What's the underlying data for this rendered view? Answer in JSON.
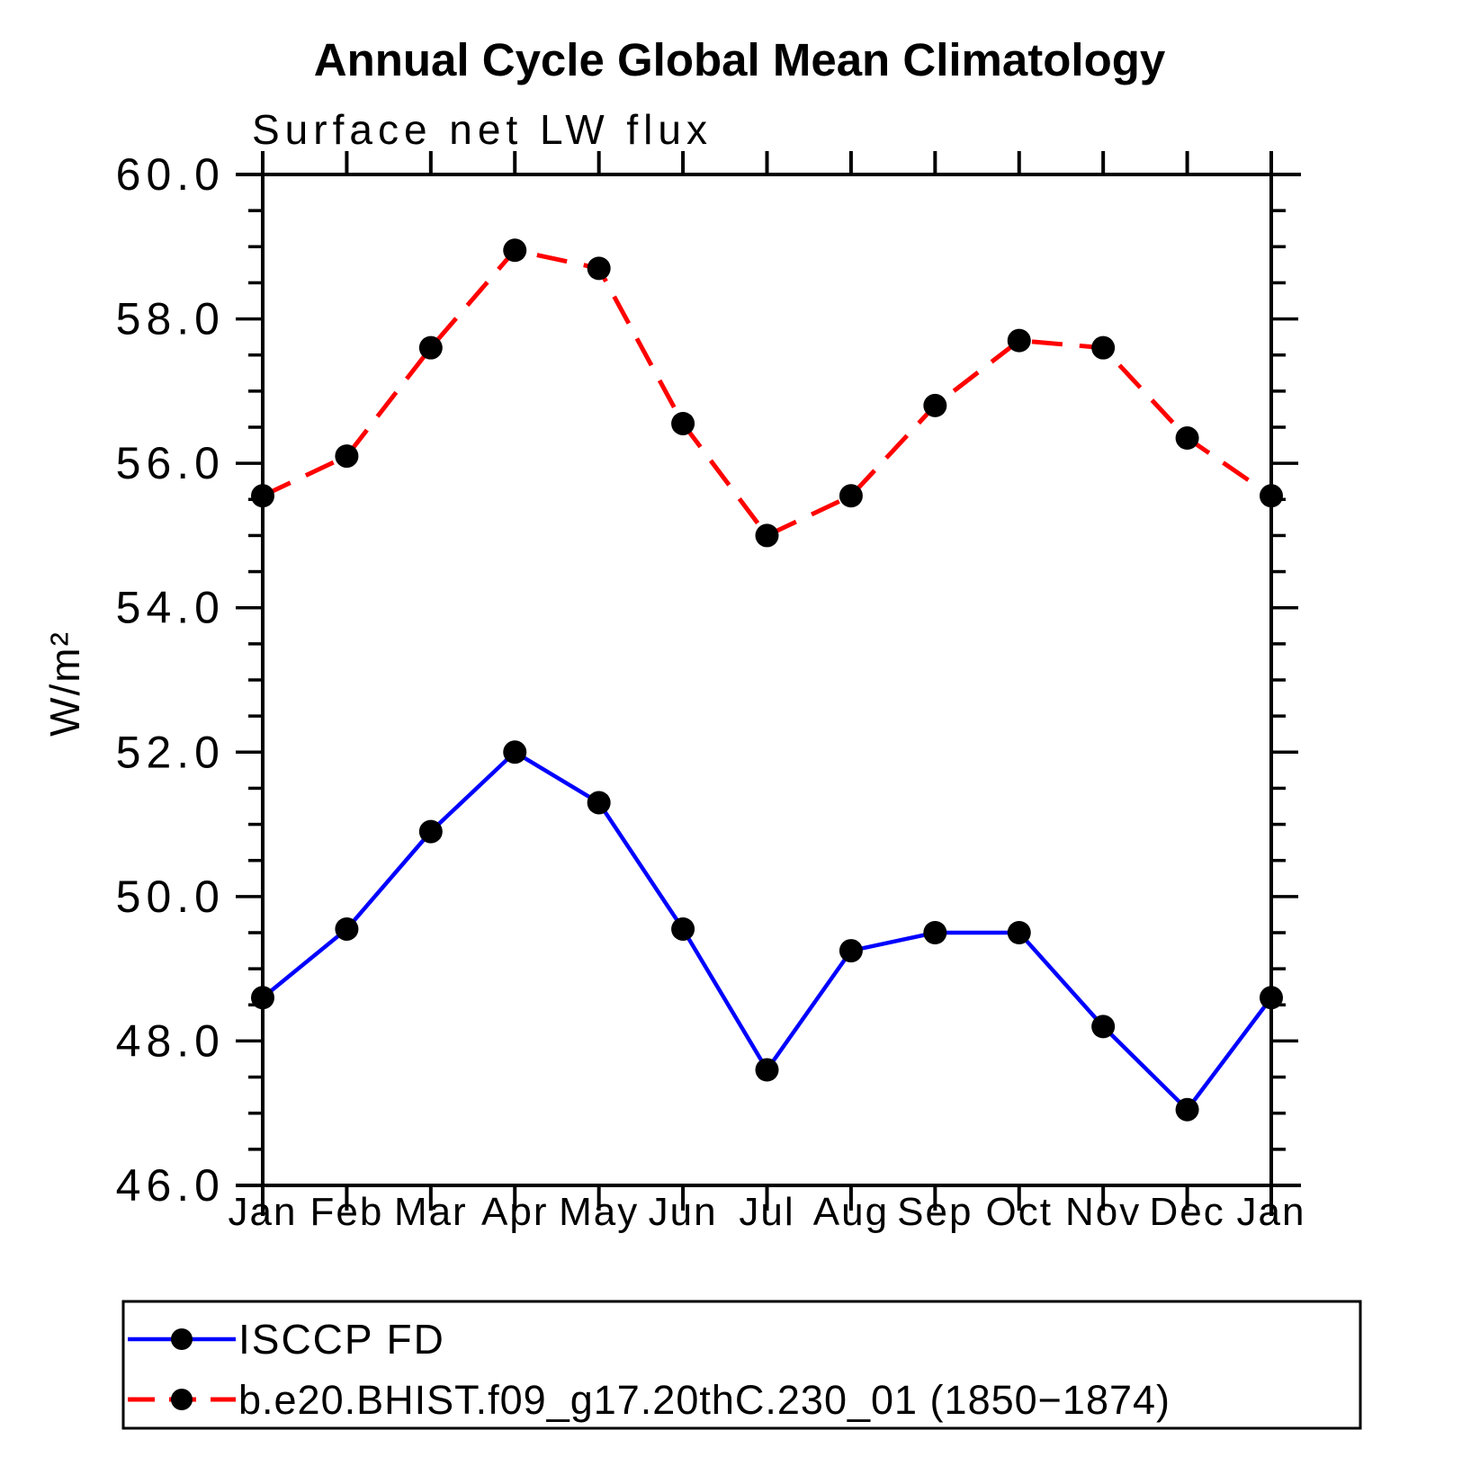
{
  "chart_data": {
    "type": "line",
    "title": "Annual Cycle Global Mean Climatology",
    "subtitle": "Surface net LW flux",
    "ylabel": "W/m²",
    "categories": [
      "Jan",
      "Feb",
      "Mar",
      "Apr",
      "May",
      "Jun",
      "Jul",
      "Aug",
      "Sep",
      "Oct",
      "Nov",
      "Dec",
      "Jan"
    ],
    "ylim": [
      46.0,
      60.0
    ],
    "ytick_major_step": 2.0,
    "ytick_minor_step": 0.5,
    "ytick_labels": [
      "46.0",
      "48.0",
      "50.0",
      "52.0",
      "54.0",
      "56.0",
      "58.0",
      "60.0"
    ],
    "grid": false,
    "legend_position": "bottom-left",
    "axis_color": "#000000",
    "marker_color": "#000000",
    "background": "#ffffff",
    "series": [
      {
        "name": "ISCCP FD",
        "color": "#0000ff",
        "line_style": "solid",
        "marker": "filled-circle",
        "values": [
          48.6,
          49.55,
          50.9,
          52.0,
          51.3,
          49.55,
          47.6,
          49.25,
          49.5,
          49.5,
          48.2,
          47.05,
          48.6
        ]
      },
      {
        "name": "b.e20.BHIST.f09_g17.20thC.230_01 (1850−1874)",
        "color": "#ff0000",
        "line_style": "dashed",
        "marker": "filled-circle",
        "values": [
          55.55,
          56.1,
          57.6,
          58.95,
          58.7,
          56.55,
          55.0,
          55.55,
          56.8,
          57.7,
          57.6,
          56.35,
          55.55
        ]
      }
    ]
  }
}
